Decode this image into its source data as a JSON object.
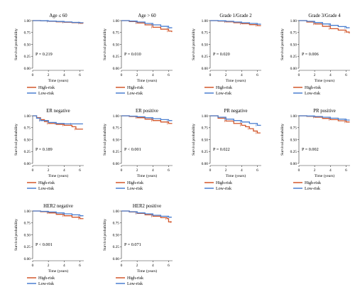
{
  "colors": {
    "high": "#d2572b",
    "low": "#4a7fd0"
  },
  "chart_data": [
    {
      "type": "line",
      "title": "Age ≤ 60",
      "xlabel": "Time (years)",
      "ylabel": "Survival probability",
      "pvalue": "P = 0.219",
      "xlim": [
        0,
        6.5
      ],
      "ylim": [
        0,
        1.0
      ],
      "x_ticks": [
        "0",
        "2",
        "4",
        "6"
      ],
      "y_ticks": [
        "0.00",
        "0.25",
        "0.50",
        "0.75",
        "1.00"
      ],
      "legend": [
        "High-risk",
        "Low-risk"
      ],
      "series": [
        {
          "name": "High-risk",
          "points": [
            [
              0,
              1.0
            ],
            [
              1,
              0.995
            ],
            [
              2,
              0.985
            ],
            [
              3,
              0.975
            ],
            [
              4,
              0.965
            ],
            [
              5,
              0.955
            ],
            [
              6,
              0.945
            ],
            [
              6.4,
              0.94
            ]
          ]
        },
        {
          "name": "Low-risk",
          "points": [
            [
              0,
              1.0
            ],
            [
              1,
              0.997
            ],
            [
              2,
              0.99
            ],
            [
              3,
              0.982
            ],
            [
              4,
              0.972
            ],
            [
              5,
              0.962
            ],
            [
              6,
              0.955
            ],
            [
              6.4,
              0.95
            ]
          ]
        }
      ]
    },
    {
      "type": "line",
      "title": "Age > 60",
      "xlabel": "Time (years)",
      "ylabel": "Survival probability",
      "pvalue": "P = 0.010",
      "xlim": [
        0,
        6.5
      ],
      "ylim": [
        0,
        1.0
      ],
      "x_ticks": [
        "0",
        "2",
        "4",
        "6"
      ],
      "y_ticks": [
        "0.00",
        "0.25",
        "0.50",
        "0.75",
        "1.00"
      ],
      "legend": [
        "High-risk",
        "Low-risk"
      ],
      "series": [
        {
          "name": "High-risk",
          "points": [
            [
              0,
              1.0
            ],
            [
              1,
              0.98
            ],
            [
              2,
              0.95
            ],
            [
              3,
              0.91
            ],
            [
              4,
              0.86
            ],
            [
              5,
              0.82
            ],
            [
              6,
              0.78
            ],
            [
              6.4,
              0.76
            ]
          ]
        },
        {
          "name": "Low-risk",
          "points": [
            [
              0,
              1.0
            ],
            [
              1,
              0.99
            ],
            [
              2,
              0.97
            ],
            [
              3,
              0.94
            ],
            [
              4,
              0.91
            ],
            [
              5,
              0.88
            ],
            [
              6,
              0.85
            ],
            [
              6.4,
              0.84
            ]
          ]
        }
      ]
    },
    {
      "type": "line",
      "title": "Grade 1/Grade 2",
      "xlabel": "Time (years)",
      "ylabel": "Survival probability",
      "pvalue": "P = 0.020",
      "xlim": [
        0,
        6.5
      ],
      "ylim": [
        0,
        1.0
      ],
      "x_ticks": [
        "0",
        "2",
        "4",
        "6"
      ],
      "y_ticks": [
        "0.00",
        "0.25",
        "0.50",
        "0.75",
        "1.00"
      ],
      "legend": [
        "High-risk",
        "Low-risk"
      ],
      "series": [
        {
          "name": "High-risk",
          "points": [
            [
              0,
              1.0
            ],
            [
              1,
              0.99
            ],
            [
              2,
              0.975
            ],
            [
              3,
              0.955
            ],
            [
              4,
              0.935
            ],
            [
              5,
              0.915
            ],
            [
              6,
              0.895
            ],
            [
              6.4,
              0.885
            ]
          ]
        },
        {
          "name": "Low-risk",
          "points": [
            [
              0,
              1.0
            ],
            [
              1,
              0.995
            ],
            [
              2,
              0.985
            ],
            [
              3,
              0.97
            ],
            [
              4,
              0.955
            ],
            [
              5,
              0.94
            ],
            [
              6,
              0.925
            ],
            [
              6.4,
              0.915
            ]
          ]
        }
      ]
    },
    {
      "type": "line",
      "title": "Grade 3/Grade 4",
      "xlabel": "Time (years)",
      "ylabel": "Survival probability",
      "pvalue": "P = 0.006",
      "xlim": [
        0,
        6.5
      ],
      "ylim": [
        0,
        1.0
      ],
      "x_ticks": [
        "0",
        "2",
        "4",
        "6"
      ],
      "y_ticks": [
        "0.00",
        "0.25",
        "0.50",
        "0.75",
        "1.00"
      ],
      "legend": [
        "High-risk",
        "Low-risk"
      ],
      "series": [
        {
          "name": "High-risk",
          "points": [
            [
              0,
              1.0
            ],
            [
              1,
              0.97
            ],
            [
              2,
              0.93
            ],
            [
              3,
              0.88
            ],
            [
              4,
              0.83
            ],
            [
              5,
              0.8
            ],
            [
              6,
              0.76
            ],
            [
              6.4,
              0.73
            ]
          ]
        },
        {
          "name": "Low-risk",
          "points": [
            [
              0,
              1.0
            ],
            [
              1,
              0.985
            ],
            [
              2,
              0.96
            ],
            [
              3,
              0.93
            ],
            [
              4,
              0.9
            ],
            [
              5,
              0.875
            ],
            [
              6,
              0.85
            ],
            [
              6.4,
              0.84
            ]
          ]
        }
      ]
    },
    {
      "type": "line",
      "title": "ER negative",
      "xlabel": "Time (years)",
      "ylabel": "Survival probability",
      "pvalue": "P = 0.189",
      "xlim": [
        0,
        6.5
      ],
      "ylim": [
        0,
        1.0
      ],
      "x_ticks": [
        "0",
        "2",
        "4",
        "6"
      ],
      "y_ticks": [
        "0.00",
        "0.25",
        "0.50",
        "0.75",
        "1.00"
      ],
      "legend": [
        "High-risk",
        "Low-risk"
      ],
      "series": [
        {
          "name": "High-risk",
          "points": [
            [
              0,
              1.0
            ],
            [
              0.5,
              0.96
            ],
            [
              1,
              0.92
            ],
            [
              1.5,
              0.88
            ],
            [
              2,
              0.84
            ],
            [
              3,
              0.82
            ],
            [
              4,
              0.8
            ],
            [
              5,
              0.77
            ],
            [
              5.5,
              0.72
            ],
            [
              6.4,
              0.72
            ]
          ]
        },
        {
          "name": "Low-risk",
          "points": [
            [
              0,
              1.0
            ],
            [
              0.5,
              0.95
            ],
            [
              1,
              0.9
            ],
            [
              2,
              0.86
            ],
            [
              3,
              0.84
            ],
            [
              4,
              0.83
            ],
            [
              5,
              0.83
            ],
            [
              6.4,
              0.83
            ]
          ]
        }
      ]
    },
    {
      "type": "line",
      "title": "ER positive",
      "xlabel": "Time (years)",
      "ylabel": "Survival probability",
      "pvalue": "P < 0.001",
      "xlim": [
        0,
        6.5
      ],
      "ylim": [
        0,
        1.0
      ],
      "x_ticks": [
        "0",
        "2",
        "4",
        "6"
      ],
      "y_ticks": [
        "0.00",
        "0.25",
        "0.50",
        "0.75",
        "1.00"
      ],
      "legend": [
        "High-risk",
        "Low-risk"
      ],
      "series": [
        {
          "name": "High-risk",
          "points": [
            [
              0,
              1.0
            ],
            [
              1,
              0.985
            ],
            [
              2,
              0.96
            ],
            [
              3,
              0.93
            ],
            [
              4,
              0.9
            ],
            [
              5,
              0.87
            ],
            [
              6,
              0.84
            ],
            [
              6.4,
              0.83
            ]
          ]
        },
        {
          "name": "Low-risk",
          "points": [
            [
              0,
              1.0
            ],
            [
              1,
              0.993
            ],
            [
              2,
              0.98
            ],
            [
              3,
              0.96
            ],
            [
              4,
              0.94
            ],
            [
              5,
              0.92
            ],
            [
              6,
              0.9
            ],
            [
              6.4,
              0.89
            ]
          ]
        }
      ]
    },
    {
      "type": "line",
      "title": "PR negative",
      "xlabel": "Time (years)",
      "ylabel": "Survival probability",
      "pvalue": "P = 0.022",
      "xlim": [
        0,
        6.5
      ],
      "ylim": [
        0,
        1.0
      ],
      "x_ticks": [
        "0",
        "2",
        "4",
        "6"
      ],
      "y_ticks": [
        "0.00",
        "0.25",
        "0.50",
        "0.75",
        "1.00"
      ],
      "legend": [
        "High-risk",
        "Low-risk"
      ],
      "series": [
        {
          "name": "High-risk",
          "points": [
            [
              0,
              1.0
            ],
            [
              1,
              0.95
            ],
            [
              2,
              0.89
            ],
            [
              3,
              0.84
            ],
            [
              4,
              0.8
            ],
            [
              4.5,
              0.77
            ],
            [
              5,
              0.73
            ],
            [
              5.5,
              0.68
            ],
            [
              6,
              0.64
            ],
            [
              6.4,
              0.64
            ]
          ]
        },
        {
          "name": "Low-risk",
          "points": [
            [
              0,
              1.0
            ],
            [
              1,
              0.97
            ],
            [
              2,
              0.93
            ],
            [
              3,
              0.9
            ],
            [
              4,
              0.87
            ],
            [
              5,
              0.84
            ],
            [
              6,
              0.8
            ],
            [
              6.4,
              0.79
            ]
          ]
        }
      ]
    },
    {
      "type": "line",
      "title": "PR positive",
      "xlabel": "Time (years)",
      "ylabel": "Survival probability",
      "pvalue": "P = 0.002",
      "xlim": [
        0,
        6.5
      ],
      "ylim": [
        0,
        1.0
      ],
      "x_ticks": [
        "0",
        "2",
        "4",
        "6"
      ],
      "y_ticks": [
        "0.00",
        "0.25",
        "0.50",
        "0.75",
        "1.00"
      ],
      "legend": [
        "High-risk",
        "Low-risk"
      ],
      "series": [
        {
          "name": "High-risk",
          "points": [
            [
              0,
              1.0
            ],
            [
              1,
              0.99
            ],
            [
              2,
              0.97
            ],
            [
              3,
              0.945
            ],
            [
              4,
              0.92
            ],
            [
              5,
              0.895
            ],
            [
              6,
              0.87
            ],
            [
              6.4,
              0.86
            ]
          ]
        },
        {
          "name": "Low-risk",
          "points": [
            [
              0,
              1.0
            ],
            [
              1,
              0.995
            ],
            [
              2,
              0.985
            ],
            [
              3,
              0.97
            ],
            [
              4,
              0.95
            ],
            [
              5,
              0.93
            ],
            [
              6,
              0.91
            ],
            [
              6.4,
              0.9
            ]
          ]
        }
      ]
    },
    {
      "type": "line",
      "title": "HER2 negative",
      "xlabel": "Time (years)",
      "ylabel": "Survival probability",
      "pvalue": "P < 0.001",
      "xlim": [
        0,
        6.5
      ],
      "ylim": [
        0,
        1.0
      ],
      "x_ticks": [
        "0",
        "2",
        "4",
        "6"
      ],
      "y_ticks": [
        "0.00",
        "0.25",
        "0.50",
        "0.75",
        "1.00"
      ],
      "legend": [
        "High-risk",
        "Low-risk"
      ],
      "series": [
        {
          "name": "High-risk",
          "points": [
            [
              0,
              1.0
            ],
            [
              1,
              0.985
            ],
            [
              2,
              0.96
            ],
            [
              3,
              0.93
            ],
            [
              4,
              0.9
            ],
            [
              5,
              0.87
            ],
            [
              6,
              0.84
            ],
            [
              6.4,
              0.83
            ]
          ]
        },
        {
          "name": "Low-risk",
          "points": [
            [
              0,
              1.0
            ],
            [
              1,
              0.993
            ],
            [
              2,
              0.98
            ],
            [
              3,
              0.96
            ],
            [
              4,
              0.94
            ],
            [
              5,
              0.92
            ],
            [
              6,
              0.9
            ],
            [
              6.4,
              0.89
            ]
          ]
        }
      ]
    },
    {
      "type": "line",
      "title": "HER2 positive",
      "xlabel": "Time (years)",
      "ylabel": "Survival probability",
      "pvalue": "P = 0.071",
      "xlim": [
        0,
        6.5
      ],
      "ylim": [
        0,
        1.0
      ],
      "x_ticks": [
        "0",
        "2",
        "4",
        "6"
      ],
      "y_ticks": [
        "0.00",
        "0.25",
        "0.50",
        "0.75",
        "1.00"
      ],
      "legend": [
        "High-risk",
        "Low-risk"
      ],
      "series": [
        {
          "name": "High-risk",
          "points": [
            [
              0,
              1.0
            ],
            [
              1,
              0.98
            ],
            [
              2,
              0.95
            ],
            [
              3,
              0.92
            ],
            [
              4,
              0.89
            ],
            [
              5,
              0.86
            ],
            [
              5.8,
              0.84
            ],
            [
              6,
              0.77
            ],
            [
              6.4,
              0.77
            ]
          ]
        },
        {
          "name": "Low-risk",
          "points": [
            [
              0,
              1.0
            ],
            [
              1,
              0.985
            ],
            [
              2,
              0.96
            ],
            [
              3,
              0.94
            ],
            [
              4,
              0.91
            ],
            [
              5,
              0.89
            ],
            [
              6,
              0.87
            ],
            [
              6.4,
              0.87
            ]
          ]
        }
      ]
    }
  ]
}
